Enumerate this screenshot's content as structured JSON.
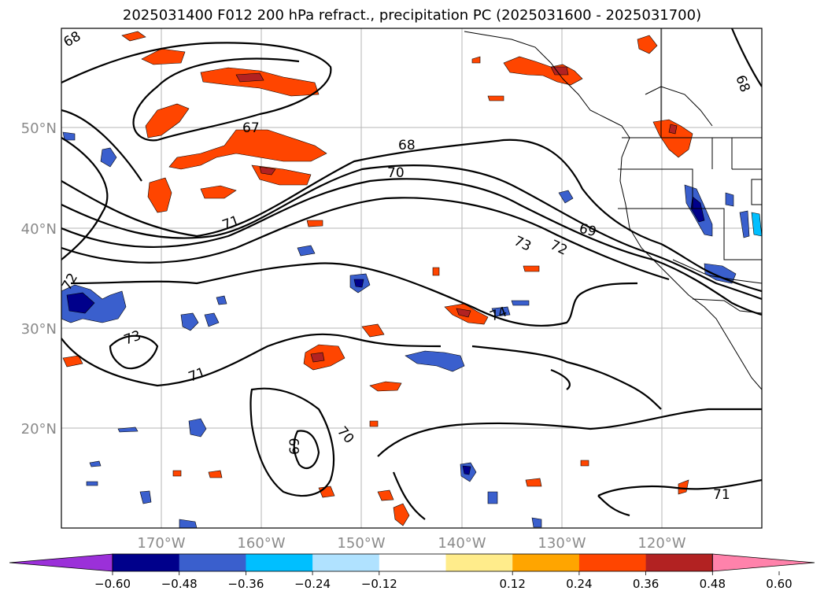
{
  "title": "2025031400 F012 200 hPa refract., precipitation PC (2025031600 - 2025031700)",
  "map": {
    "lat_labels": [
      "50°N",
      "40°N",
      "30°N",
      "20°N"
    ],
    "lon_labels": [
      "170°W",
      "160°W",
      "150°W",
      "140°W",
      "130°W",
      "120°W"
    ],
    "contour_labels": [
      "68",
      "67",
      "68",
      "70",
      "71",
      "69",
      "73",
      "72",
      "72",
      "73",
      "74",
      "71",
      "70",
      "69",
      "71",
      "68"
    ]
  },
  "colorbar": {
    "ticks": [
      "−0.60",
      "−0.48",
      "−0.36",
      "−0.24",
      "−0.12",
      "0.12",
      "0.24",
      "0.36",
      "0.48",
      "0.60"
    ],
    "colors": [
      "#9b30d9",
      "#00008b",
      "#3a5fcd",
      "#00bfff",
      "#b0e2ff",
      "#ffffff",
      "#ffec8b",
      "#ffa500",
      "#ff4500",
      "#b22222",
      "#ff82ab"
    ]
  }
}
